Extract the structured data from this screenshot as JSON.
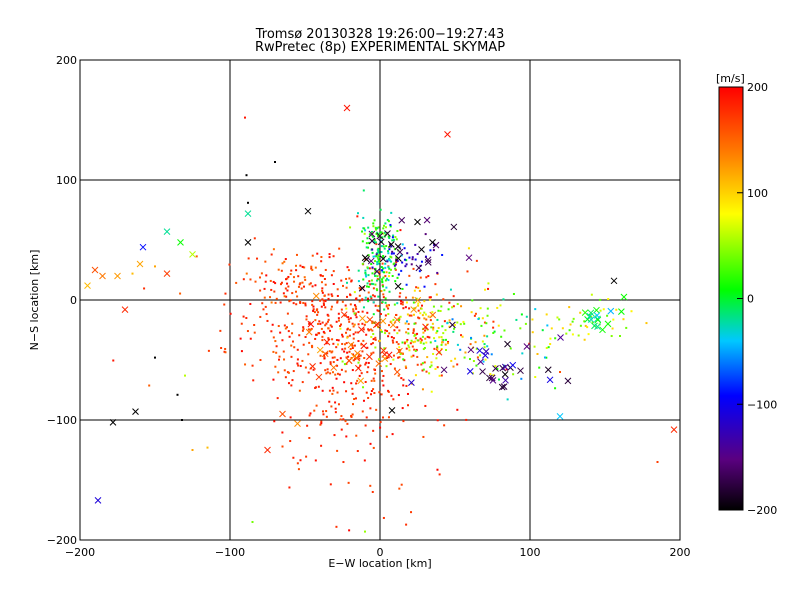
{
  "chart_data": {
    "type": "scatter",
    "title": "Tromsø 20130328 19:26:00−19:27:43",
    "subtitle": "RwPretec (8p) EXPERIMENTAL SKYMAP",
    "xlabel": "E−W location [km]",
    "ylabel": "N−S location [km]",
    "xlim": [
      -200,
      200
    ],
    "ylim": [
      -200,
      200
    ],
    "x_ticks": [
      -200,
      -100,
      0,
      100,
      200
    ],
    "y_ticks": [
      -200,
      -100,
      0,
      100,
      200
    ],
    "x_tick_labels": [
      "−200",
      "−100",
      "0",
      "100",
      "200"
    ],
    "y_tick_labels": [
      "−200",
      "−100",
      "0",
      "100",
      "200"
    ],
    "grid": true,
    "colorbar": {
      "unit": "[m/s]",
      "range": [
        -200,
        200
      ],
      "ticks": [
        -200,
        -100,
        0,
        100,
        200
      ],
      "tick_labels": [
        "−200",
        "−100",
        "0",
        "100",
        "200"
      ],
      "colormap": [
        "#000000",
        "#5a0080",
        "#0000ff",
        "#00c8ff",
        "#00ff00",
        "#ffff00",
        "#ff8000",
        "#ff0000"
      ]
    },
    "clusters": [
      {
        "cx": -25,
        "cy": -25,
        "sx": 38,
        "sy": 30,
        "n": 520,
        "vmin": 150,
        "vmax": 200,
        "marker": "dot"
      },
      {
        "cx": -20,
        "cy": -90,
        "sx": 28,
        "sy": 35,
        "n": 120,
        "vmin": 160,
        "vmax": 200,
        "marker": "dot"
      },
      {
        "cx": -60,
        "cy": 15,
        "sx": 18,
        "sy": 12,
        "n": 80,
        "vmin": 140,
        "vmax": 200,
        "marker": "dot"
      },
      {
        "cx": 0,
        "cy": 28,
        "sx": 7,
        "sy": 18,
        "n": 140,
        "vmin": -40,
        "vmax": 40,
        "marker": "dot"
      },
      {
        "cx": 0,
        "cy": 55,
        "sx": 6,
        "sy": 6,
        "n": 50,
        "vmin": -20,
        "vmax": 60,
        "marker": "dot"
      },
      {
        "cx": 15,
        "cy": 35,
        "sx": 14,
        "sy": 10,
        "n": 45,
        "vmin": -160,
        "vmax": -80,
        "marker": "dot"
      },
      {
        "cx": 30,
        "cy": -25,
        "sx": 22,
        "sy": 20,
        "n": 150,
        "vmin": 20,
        "vmax": 130,
        "marker": "dot"
      },
      {
        "cx": 70,
        "cy": -35,
        "sx": 28,
        "sy": 18,
        "n": 90,
        "vmin": -60,
        "vmax": 110,
        "marker": "dot"
      },
      {
        "cx": 75,
        "cy": -55,
        "sx": 18,
        "sy": 12,
        "n": 30,
        "vmin": -200,
        "vmax": -90,
        "marker": "x"
      },
      {
        "cx": 140,
        "cy": -20,
        "sx": 12,
        "sy": 12,
        "n": 40,
        "vmin": 20,
        "vmax": 110,
        "marker": "dot"
      },
      {
        "cx": 145,
        "cy": -15,
        "sx": 8,
        "sy": 10,
        "n": 16,
        "vmin": -60,
        "vmax": 20,
        "marker": "x"
      },
      {
        "cx": -10,
        "cy": -35,
        "sx": 22,
        "sy": 20,
        "n": 40,
        "vmin": 120,
        "vmax": 200,
        "marker": "x"
      },
      {
        "cx": 20,
        "cy": 40,
        "sx": 20,
        "sy": 15,
        "n": 25,
        "vmin": -200,
        "vmax": -150,
        "marker": "x"
      }
    ],
    "points": [
      {
        "x": -185,
        "y": 20,
        "v": 140,
        "m": "x"
      },
      {
        "x": -190,
        "y": 25,
        "v": 160,
        "m": "x"
      },
      {
        "x": -175,
        "y": 20,
        "v": 125,
        "m": "x"
      },
      {
        "x": -160,
        "y": 30,
        "v": 120,
        "m": "x"
      },
      {
        "x": -158,
        "y": 44,
        "v": -90,
        "m": "x"
      },
      {
        "x": -142,
        "y": 57,
        "v": -20,
        "m": "x"
      },
      {
        "x": -133,
        "y": 48,
        "v": 10,
        "m": "x"
      },
      {
        "x": -125,
        "y": 38,
        "v": 60,
        "m": "x"
      },
      {
        "x": -142,
        "y": 22,
        "v": 170,
        "m": "x"
      },
      {
        "x": -170,
        "y": -8,
        "v": 180,
        "m": "x"
      },
      {
        "x": -195,
        "y": 12,
        "v": 110,
        "m": "x"
      },
      {
        "x": -178,
        "y": -102,
        "v": -200,
        "m": "x"
      },
      {
        "x": -163,
        "y": -93,
        "v": -200,
        "m": "x"
      },
      {
        "x": -188,
        "y": -167,
        "v": -110,
        "m": "x"
      },
      {
        "x": -88,
        "y": 72,
        "v": -20,
        "m": "x"
      },
      {
        "x": -88,
        "y": 48,
        "v": -200,
        "m": "x"
      },
      {
        "x": -48,
        "y": 74,
        "v": -200,
        "m": "x"
      },
      {
        "x": -22,
        "y": 160,
        "v": 190,
        "m": "x"
      },
      {
        "x": 45,
        "y": 138,
        "v": 190,
        "m": "x"
      },
      {
        "x": 25,
        "y": 65,
        "v": -200,
        "m": "x"
      },
      {
        "x": 35,
        "y": 48,
        "v": -200,
        "m": "x"
      },
      {
        "x": 156,
        "y": 16,
        "v": -200,
        "m": "x"
      },
      {
        "x": 120,
        "y": -97,
        "v": -40,
        "m": "x"
      },
      {
        "x": 196,
        "y": -108,
        "v": 180,
        "m": "x"
      },
      {
        "x": -65,
        "y": -95,
        "v": 160,
        "m": "x"
      },
      {
        "x": -75,
        "y": -125,
        "v": 180,
        "m": "x"
      },
      {
        "x": -55,
        "y": -103,
        "v": 130,
        "m": "x"
      },
      {
        "x": 8,
        "y": -92,
        "v": -200,
        "m": "x"
      },
      {
        "x": -90,
        "y": 152,
        "v": 190,
        "m": "dot"
      },
      {
        "x": -70,
        "y": 115,
        "v": -200,
        "m": "dot"
      },
      {
        "x": -89,
        "y": 104,
        "v": -200,
        "m": "dot"
      },
      {
        "x": -88,
        "y": 81,
        "v": -200,
        "m": "dot"
      },
      {
        "x": -150,
        "y": -48,
        "v": -200,
        "m": "dot"
      },
      {
        "x": -132,
        "y": -100,
        "v": -200,
        "m": "dot"
      },
      {
        "x": -125,
        "y": -125,
        "v": 120,
        "m": "dot"
      },
      {
        "x": -115,
        "y": -123,
        "v": 110,
        "m": "dot"
      },
      {
        "x": -85,
        "y": -185,
        "v": 40,
        "m": "dot"
      },
      {
        "x": -10,
        "y": -193,
        "v": 50,
        "m": "dot"
      },
      {
        "x": -135,
        "y": -79,
        "v": -200,
        "m": "dot"
      },
      {
        "x": -130,
        "y": -63,
        "v": 60,
        "m": "dot"
      },
      {
        "x": -165,
        "y": 22,
        "v": 110,
        "m": "dot"
      },
      {
        "x": -150,
        "y": 28,
        "v": 120,
        "m": "dot"
      },
      {
        "x": 120,
        "y": -60,
        "v": 160,
        "m": "dot"
      },
      {
        "x": 105,
        "y": -45,
        "v": 110,
        "m": "dot"
      },
      {
        "x": 160,
        "y": -30,
        "v": 40,
        "m": "dot"
      },
      {
        "x": 185,
        "y": -135,
        "v": 170,
        "m": "dot"
      }
    ]
  }
}
